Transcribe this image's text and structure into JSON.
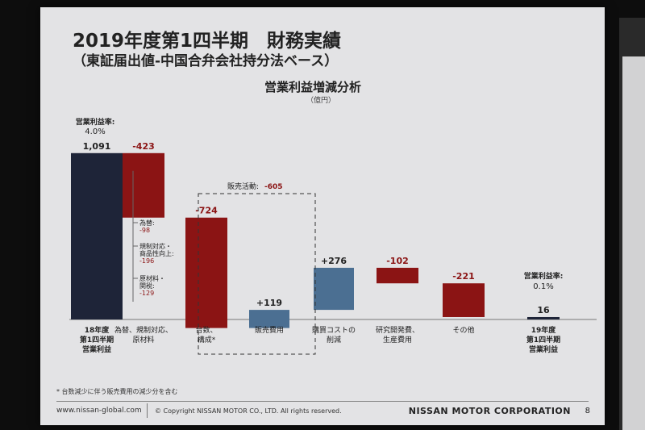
{
  "slide": {
    "title": "2019年度第1四半期　財務実績",
    "subtitle": "（東証届出値-中国合弁会社持分法ベース）",
    "footnote": "* 台数減少に伴う販売費用の減少分を含む",
    "url": "www.nissan-global.com",
    "copyright": "© Copyright NISSAN MOTOR CO., LTD. All rights reserved.",
    "brand": "NISSAN MOTOR CORPORATION",
    "page": "8"
  },
  "colors": {
    "navy": "#1e2438",
    "red": "#8b1414",
    "blue": "#4b6f92",
    "slide_bg": "#e3e3e5"
  },
  "chart_data": {
    "type": "waterfall",
    "title": "営業利益増減分析",
    "unit": "（億円）",
    "bars": [
      {
        "label": "18年度\n第1四半期\n営業利益",
        "value": 1091,
        "display": "1,091",
        "kind": "total",
        "color": "navy"
      },
      {
        "label": "為替、規制対応、\n原材料",
        "value": -423,
        "display": "-423",
        "kind": "delta",
        "color": "red"
      },
      {
        "label": "台数、\n構成*",
        "value": -724,
        "display": "-724",
        "kind": "delta",
        "color": "red"
      },
      {
        "label": "販売費用",
        "value": 119,
        "display": "+119",
        "kind": "delta",
        "color": "blue"
      },
      {
        "label": "購買コストの\n削減",
        "value": 276,
        "display": "+276",
        "kind": "delta",
        "color": "blue"
      },
      {
        "label": "研究開発費、\n生産費用",
        "value": -102,
        "display": "-102",
        "kind": "delta",
        "color": "red"
      },
      {
        "label": "その他",
        "value": -221,
        "display": "-221",
        "kind": "delta",
        "color": "red"
      },
      {
        "label": "19年度\n第1四半期\n営業利益",
        "value": 16,
        "display": "16",
        "kind": "total",
        "color": "navy"
      }
    ],
    "margins": [
      {
        "label": "営業利益率:",
        "value": "4.0%"
      },
      {
        "label": "営業利益率:",
        "value": "0.1%"
      }
    ],
    "breakdown": [
      {
        "label": "為替:",
        "value": "-98"
      },
      {
        "label": "規制対応・\n商品性向上:",
        "value": "-196"
      },
      {
        "label": "原材料・\n関税:",
        "value": "-129"
      }
    ],
    "group": {
      "label": "販売活動:",
      "value": "-605"
    }
  }
}
